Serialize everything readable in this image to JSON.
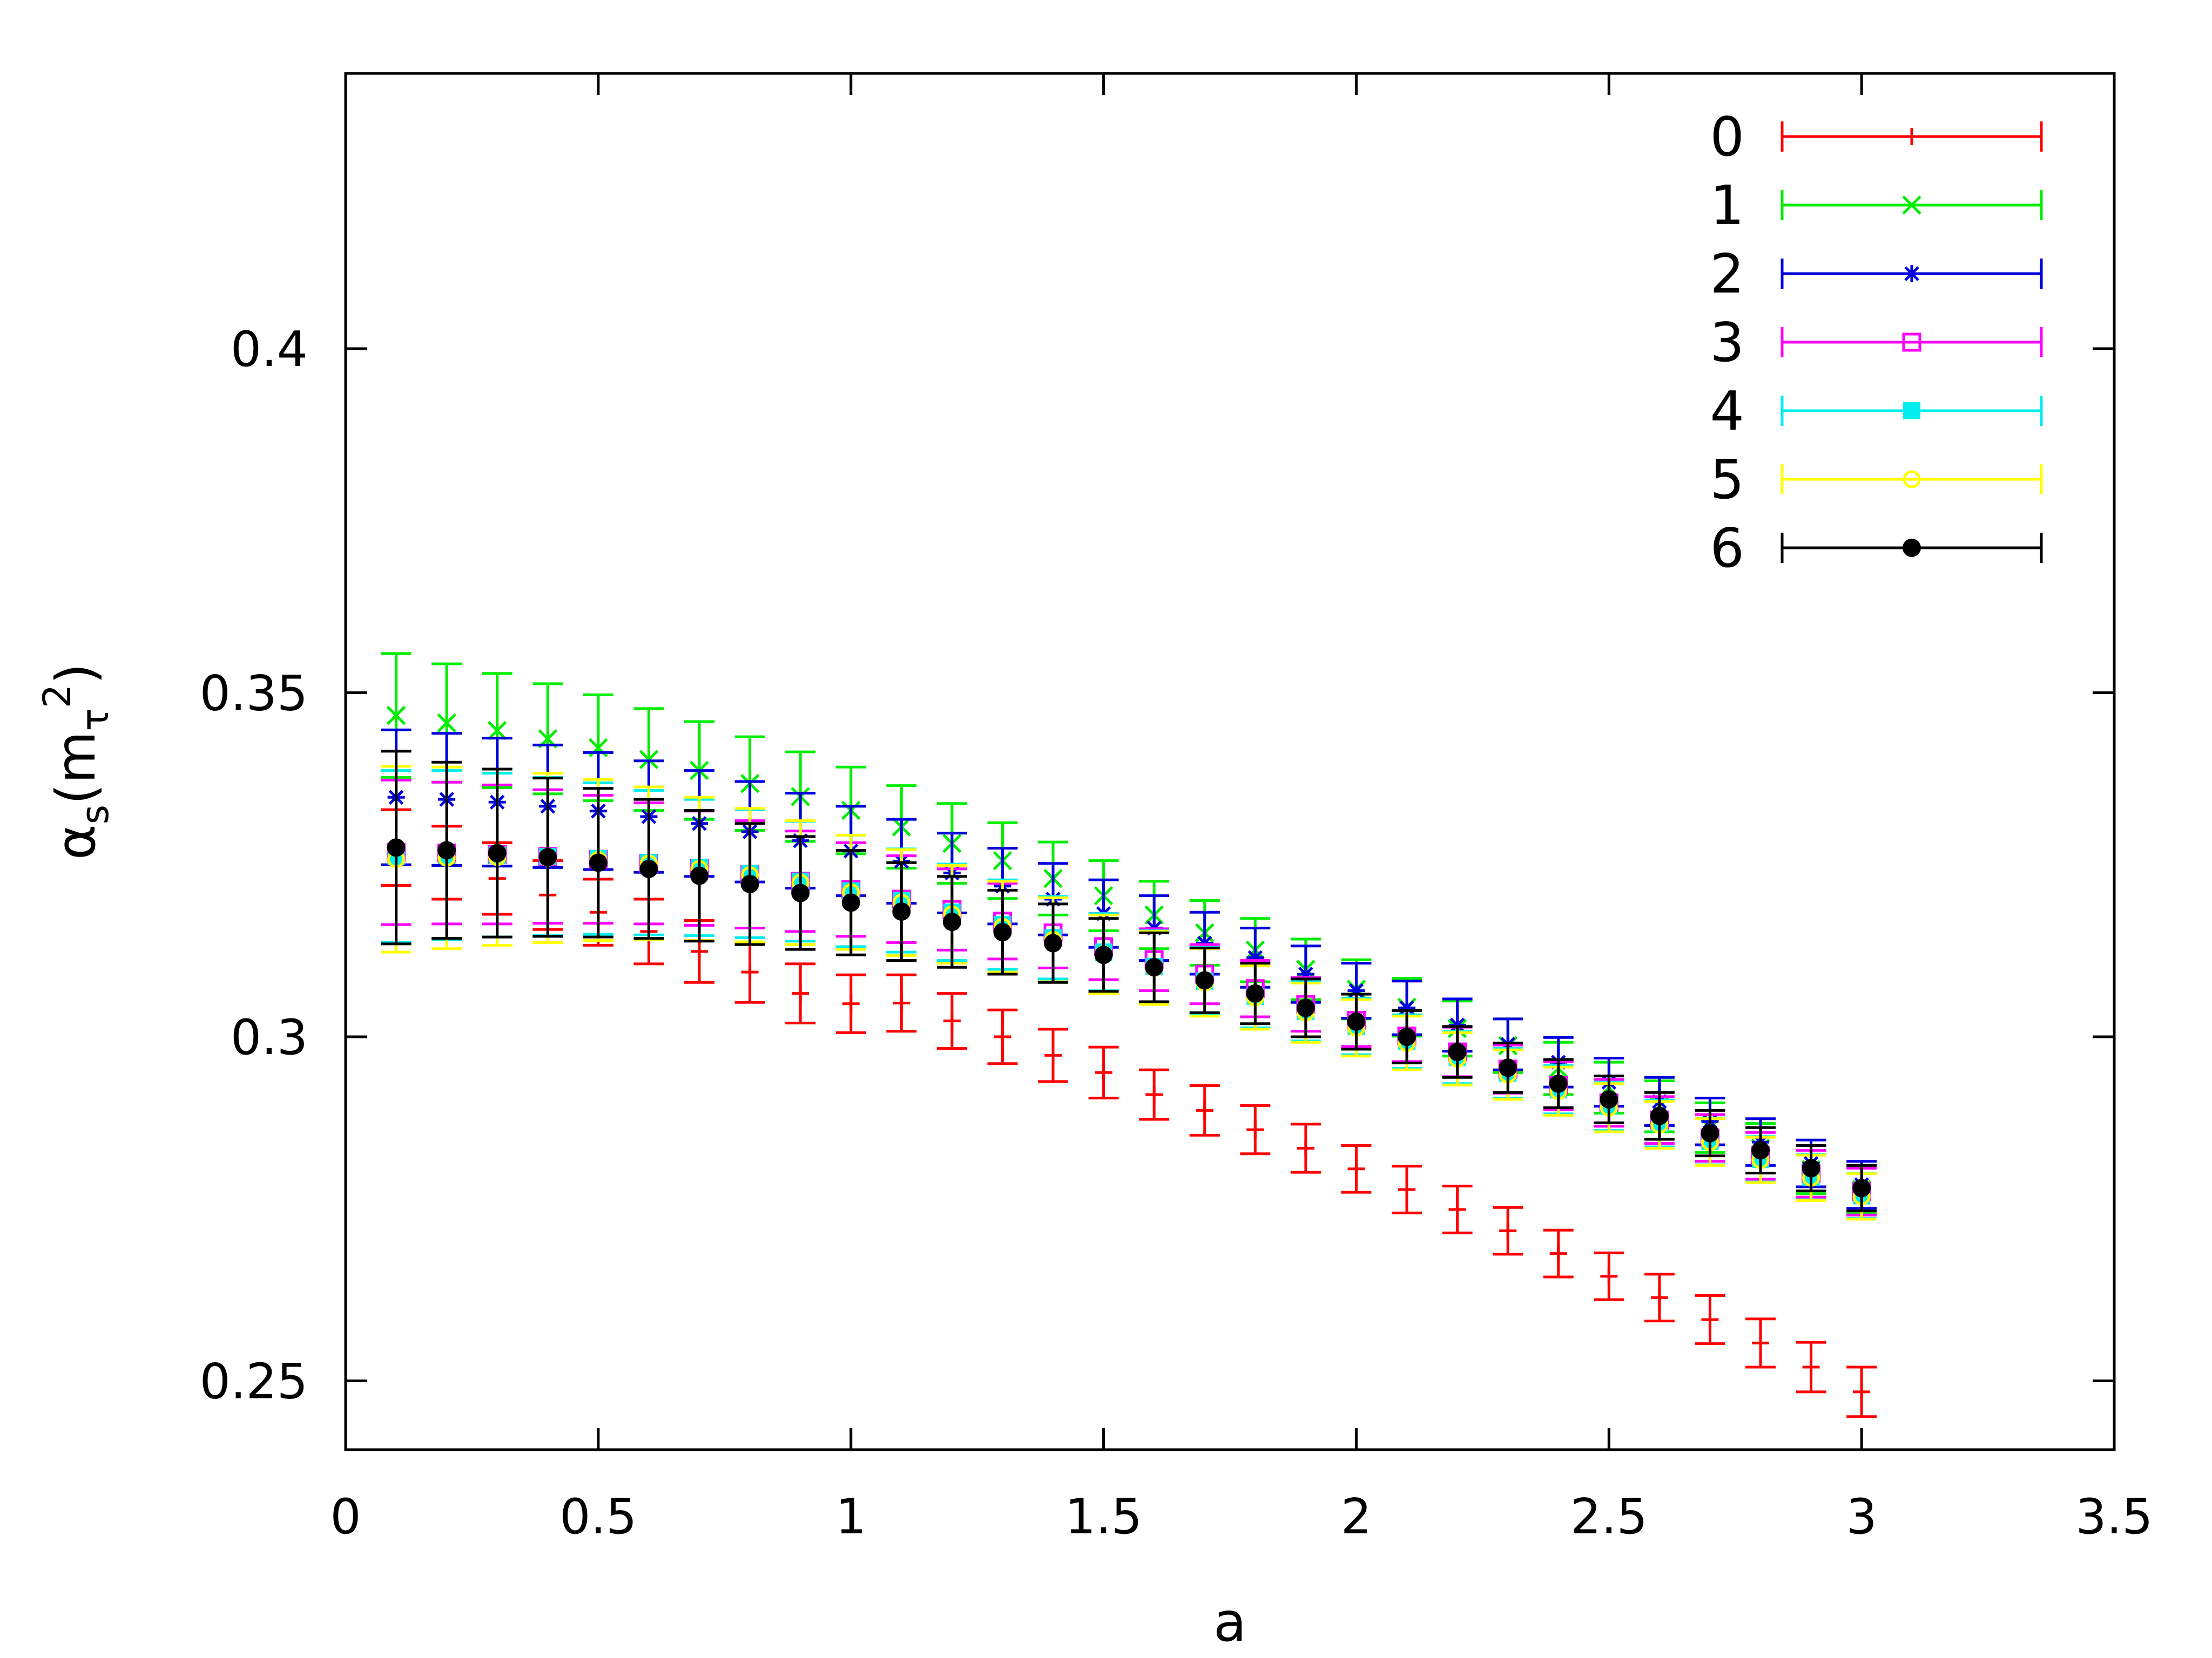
{
  "chart_data": {
    "type": "scatter",
    "error_bars": true,
    "xlabel": "a",
    "ylabel": "α_s(m_τ^2)",
    "ylabel_parts": {
      "base": "α",
      "sub": "s",
      "open": "(m",
      "sub2": "τ",
      "sup": "2",
      "close": ")"
    },
    "xlim": [
      0,
      3.5
    ],
    "ylim": [
      0.24,
      0.44
    ],
    "x_ticks": [
      "0",
      "0.5",
      "1",
      "1.5",
      "2",
      "2.5",
      "3",
      "3.5"
    ],
    "x_tick_values": [
      0,
      0.5,
      1,
      1.5,
      2,
      2.5,
      3,
      3.5
    ],
    "y_ticks": [
      "0.25",
      "0.3",
      "0.35",
      "0.4"
    ],
    "y_tick_values": [
      0.25,
      0.3,
      0.35,
      0.4
    ],
    "grid": false,
    "legend_position": "top-right",
    "x": [
      0.1,
      0.2,
      0.3,
      0.4,
      0.5,
      0.6,
      0.7,
      0.8,
      0.9,
      1.0,
      1.1,
      1.2,
      1.3,
      1.4,
      1.5,
      1.6,
      1.7,
      1.8,
      1.9,
      2.0,
      2.1,
      2.2,
      2.3,
      2.4,
      2.5,
      2.6,
      2.7,
      2.8,
      2.9,
      3.0
    ],
    "series": [
      {
        "name": "0",
        "color": "#ff0000",
        "marker": "plus",
        "values": [
          0.3275,
          0.3253,
          0.323,
          0.3206,
          0.3181,
          0.3153,
          0.3124,
          0.3094,
          0.3063,
          0.3048,
          0.3049,
          0.3023,
          0.3,
          0.2973,
          0.2948,
          0.2916,
          0.2893,
          0.2865,
          0.2838,
          0.2808,
          0.2778,
          0.2749,
          0.2718,
          0.2685,
          0.2652,
          0.2621,
          0.2589,
          0.2555,
          0.252,
          0.2484
        ],
        "errors": [
          0.0055,
          0.0053,
          0.0052,
          0.005,
          0.0048,
          0.0047,
          0.0045,
          0.0044,
          0.0043,
          0.0042,
          0.0041,
          0.004,
          0.0039,
          0.0038,
          0.0037,
          0.0036,
          0.0036,
          0.0035,
          0.0035,
          0.0034,
          0.0034,
          0.0034,
          0.0034,
          0.0034,
          0.0034,
          0.0034,
          0.0035,
          0.0035,
          0.0036,
          0.0036
        ]
      },
      {
        "name": "1",
        "color": "#00ee00",
        "marker": "x",
        "values": [
          0.3467,
          0.3456,
          0.3445,
          0.3433,
          0.342,
          0.3403,
          0.3387,
          0.3368,
          0.3349,
          0.3329,
          0.3305,
          0.3281,
          0.3256,
          0.323,
          0.3205,
          0.3177,
          0.3151,
          0.3126,
          0.3098,
          0.3069,
          0.3043,
          0.3012,
          0.2987,
          0.2954,
          0.2926,
          0.2899,
          0.2868,
          0.2838,
          0.2807,
          0.2778
        ],
        "errors": [
          0.009,
          0.0086,
          0.0083,
          0.008,
          0.0077,
          0.0074,
          0.0071,
          0.0068,
          0.0065,
          0.0063,
          0.006,
          0.0058,
          0.0055,
          0.0053,
          0.0051,
          0.0049,
          0.0047,
          0.0046,
          0.0044,
          0.0043,
          0.0042,
          0.004,
          0.0039,
          0.0038,
          0.0037,
          0.0037,
          0.0036,
          0.0036,
          0.0035,
          0.0035
        ]
      },
      {
        "name": "2",
        "color": "#0000dd",
        "marker": "star",
        "values": [
          0.3348,
          0.3345,
          0.3341,
          0.3335,
          0.3328,
          0.332,
          0.331,
          0.3298,
          0.3285,
          0.327,
          0.3255,
          0.3238,
          0.3219,
          0.32,
          0.3179,
          0.3158,
          0.3136,
          0.3115,
          0.3091,
          0.3067,
          0.3042,
          0.3017,
          0.2989,
          0.2963,
          0.2934,
          0.2906,
          0.2877,
          0.2847,
          0.2816,
          0.2785
        ],
        "errors": [
          0.0098,
          0.0096,
          0.0093,
          0.0089,
          0.0085,
          0.0081,
          0.0077,
          0.0073,
          0.0069,
          0.0065,
          0.0061,
          0.0058,
          0.0055,
          0.0052,
          0.0049,
          0.0047,
          0.0045,
          0.0043,
          0.0041,
          0.004,
          0.0039,
          0.0038,
          0.0037,
          0.0036,
          0.0035,
          0.0035,
          0.0034,
          0.0034,
          0.0034,
          0.0034
        ]
      },
      {
        "name": "3",
        "color": "#ff00ff",
        "marker": "open-square",
        "values": [
          0.3268,
          0.3267,
          0.3265,
          0.3262,
          0.3258,
          0.3252,
          0.3245,
          0.3236,
          0.3226,
          0.3214,
          0.32,
          0.3185,
          0.3168,
          0.3151,
          0.3131,
          0.3112,
          0.3091,
          0.307,
          0.3047,
          0.3024,
          0.3001,
          0.2978,
          0.2953,
          0.2929,
          0.2904,
          0.2879,
          0.2853,
          0.2827,
          0.2801,
          0.2775
        ],
        "errors": [
          0.0105,
          0.0103,
          0.0101,
          0.0097,
          0.0093,
          0.0088,
          0.0083,
          0.0078,
          0.0073,
          0.0068,
          0.0063,
          0.0059,
          0.0055,
          0.0051,
          0.0048,
          0.0045,
          0.0043,
          0.0041,
          0.0039,
          0.0038,
          0.0037,
          0.0036,
          0.0035,
          0.0035,
          0.0034,
          0.0034,
          0.0034,
          0.0034,
          0.0034,
          0.0034
        ]
      },
      {
        "name": "4",
        "color": "#00eeee",
        "marker": "filled-square",
        "values": [
          0.3262,
          0.3264,
          0.3264,
          0.3262,
          0.3259,
          0.3253,
          0.3246,
          0.3237,
          0.3226,
          0.3212,
          0.3198,
          0.3181,
          0.3163,
          0.3144,
          0.3123,
          0.3102,
          0.3081,
          0.3059,
          0.3037,
          0.3015,
          0.2993,
          0.297,
          0.2947,
          0.2923,
          0.2899,
          0.2874,
          0.2848,
          0.2822,
          0.2796,
          0.2769
        ],
        "errors": [
          0.0125,
          0.0123,
          0.0119,
          0.0115,
          0.011,
          0.0105,
          0.0099,
          0.0093,
          0.0087,
          0.0081,
          0.0075,
          0.007,
          0.0065,
          0.006,
          0.0056,
          0.0052,
          0.0049,
          0.0046,
          0.0043,
          0.0041,
          0.0039,
          0.0038,
          0.0036,
          0.0035,
          0.0035,
          0.0034,
          0.0034,
          0.0033,
          0.0033,
          0.0033
        ]
      },
      {
        "name": "5",
        "color": "#ffff00",
        "marker": "open-circle",
        "values": [
          0.3258,
          0.326,
          0.3261,
          0.326,
          0.3257,
          0.3252,
          0.3244,
          0.3235,
          0.3224,
          0.321,
          0.3195,
          0.3178,
          0.316,
          0.3141,
          0.312,
          0.31,
          0.3079,
          0.3057,
          0.3035,
          0.3013,
          0.2991,
          0.2968,
          0.2945,
          0.2921,
          0.2897,
          0.2872,
          0.2847,
          0.2821,
          0.2795,
          0.2768
        ],
        "errors": [
          0.0135,
          0.0132,
          0.0128,
          0.0123,
          0.0117,
          0.0111,
          0.0104,
          0.0097,
          0.009,
          0.0083,
          0.0077,
          0.0071,
          0.0066,
          0.0061,
          0.0057,
          0.0053,
          0.0049,
          0.0046,
          0.0043,
          0.0041,
          0.0039,
          0.0038,
          0.0036,
          0.0035,
          0.0035,
          0.0034,
          0.0034,
          0.0033,
          0.0033,
          0.0033
        ]
      },
      {
        "name": "6",
        "color": "#000000",
        "marker": "filled-circle",
        "values": [
          0.3275,
          0.3271,
          0.3267,
          0.3261,
          0.3253,
          0.3244,
          0.3234,
          0.3222,
          0.3209,
          0.3195,
          0.3182,
          0.3167,
          0.3152,
          0.3136,
          0.3119,
          0.3101,
          0.3082,
          0.3063,
          0.3042,
          0.3022,
          0.3,
          0.2978,
          0.2955,
          0.2932,
          0.2909,
          0.2885,
          0.286,
          0.2835,
          0.2809,
          0.278
        ],
        "errors": [
          0.014,
          0.0128,
          0.0122,
          0.0115,
          0.0108,
          0.0101,
          0.0095,
          0.0088,
          0.0082,
          0.0076,
          0.0071,
          0.0066,
          0.0061,
          0.0057,
          0.0053,
          0.005,
          0.0047,
          0.0044,
          0.0042,
          0.004,
          0.0038,
          0.0037,
          0.0036,
          0.0035,
          0.0034,
          0.0034,
          0.0033,
          0.0033,
          0.0033,
          0.0033
        ]
      }
    ]
  }
}
